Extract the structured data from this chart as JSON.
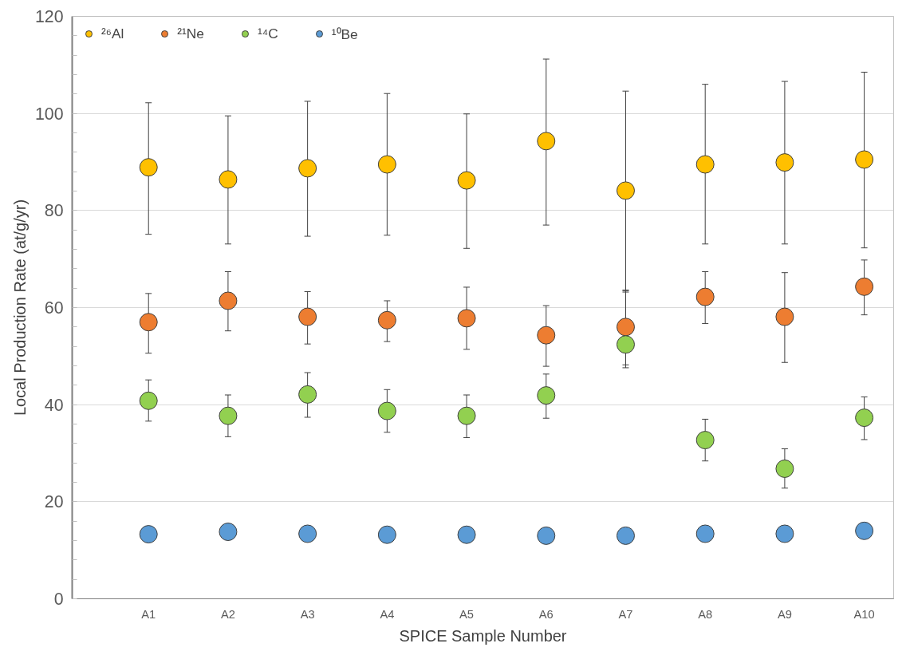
{
  "chart_data": {
    "type": "scatter",
    "xlabel": "SPICE Sample Number",
    "ylabel": "Local Production Rate (at/g/yr)",
    "categories": [
      "A1",
      "A2",
      "A3",
      "A4",
      "A5",
      "A6",
      "A7",
      "A8",
      "A9",
      "A10"
    ],
    "ylim": [
      0,
      120
    ],
    "yticks": [
      0,
      20,
      40,
      60,
      80,
      100,
      120
    ],
    "grid": "y",
    "legend": "top left",
    "marker": "circle",
    "series": [
      {
        "name": "²⁶Al",
        "color": "#ffc000",
        "values": [
          88.9,
          86.4,
          88.7,
          89.5,
          86.2,
          94.3,
          84.1,
          89.5,
          89.9,
          90.5
        ],
        "errors": [
          [
            75.1,
            102.2
          ],
          [
            73.1,
            99.5
          ],
          [
            74.7,
            102.5
          ],
          [
            74.9,
            104.1
          ],
          [
            72.2,
            99.9
          ],
          [
            77.0,
            111.2
          ],
          [
            63.5,
            104.6
          ],
          [
            73.1,
            106.0
          ],
          [
            73.1,
            106.6
          ],
          [
            72.3,
            108.5
          ]
        ]
      },
      {
        "name": "²¹Ne",
        "color": "#ed7d31",
        "values": [
          57.0,
          61.4,
          58.1,
          57.4,
          57.8,
          54.3,
          56.0,
          62.2,
          58.1,
          64.3
        ],
        "errors": [
          [
            50.6,
            62.9
          ],
          [
            55.2,
            67.4
          ],
          [
            52.5,
            63.3
          ],
          [
            53.0,
            61.4
          ],
          [
            51.4,
            64.2
          ],
          [
            47.9,
            60.4
          ],
          [
            47.6,
            63.6
          ],
          [
            56.7,
            67.4
          ],
          [
            48.7,
            67.2
          ],
          [
            58.5,
            69.8
          ]
        ]
      },
      {
        "name": "¹⁴C",
        "color": "#92d050",
        "values": [
          40.8,
          37.7,
          42.1,
          38.7,
          37.7,
          41.9,
          52.4,
          32.7,
          26.8,
          37.3
        ],
        "errors": [
          [
            36.6,
            45.1
          ],
          [
            33.4,
            42.0
          ],
          [
            37.4,
            46.6
          ],
          [
            34.3,
            43.1
          ],
          [
            33.2,
            42.0
          ],
          [
            37.2,
            46.3
          ],
          [
            48.2,
            63.2
          ],
          [
            28.4,
            37.0
          ],
          [
            22.8,
            30.9
          ],
          [
            32.8,
            41.6
          ]
        ]
      },
      {
        "name": "¹⁰Be",
        "color": "#5b9bd5",
        "values": [
          13.3,
          13.8,
          13.4,
          13.2,
          13.2,
          13.0,
          13.0,
          13.4,
          13.4,
          14.0
        ]
      }
    ]
  }
}
